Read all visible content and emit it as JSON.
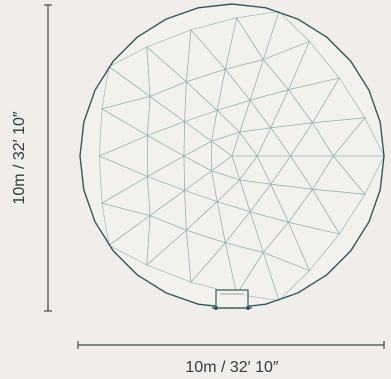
{
  "dimensions": {
    "height_label": "10m / 32′ 10″",
    "width_label": "10m / 32′ 10″"
  },
  "colors": {
    "background": "#f1eee9",
    "outline": "#2f5a5e",
    "mesh": "#8fb3b5",
    "dimension_line": "#3d4a4c",
    "text": "#2f3d40"
  },
  "icons": {
    "entrance": "door-frame-icon"
  }
}
